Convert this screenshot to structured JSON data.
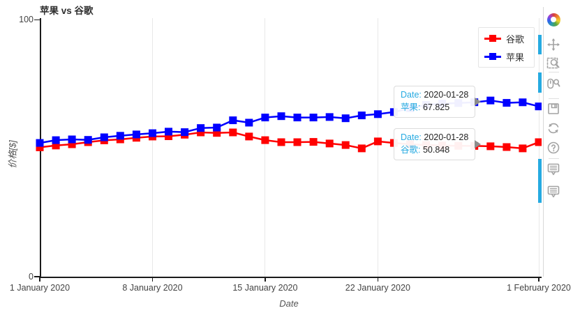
{
  "header": {
    "title": "苹果 vs 谷歌"
  },
  "axes": {
    "x": {
      "label": "Date",
      "ticks": [
        "1 January 2020",
        "8 January 2020",
        "15 January 2020",
        "22 January 2020",
        "1 February 2020"
      ],
      "tick_days": [
        0,
        7,
        14,
        21,
        31
      ]
    },
    "y": {
      "label": "价格[$]",
      "ticks": [
        "0",
        "100"
      ],
      "range": [
        0,
        100
      ]
    }
  },
  "legend": {
    "items": [
      {
        "label": "谷歌",
        "color": "#ff0000"
      },
      {
        "label": "苹果",
        "color": "#0000ff"
      }
    ]
  },
  "tooltips": [
    {
      "rows": [
        {
          "label": "Date:",
          "value": "2020-01-28"
        },
        {
          "label": "苹果:",
          "value": "67.825"
        }
      ]
    },
    {
      "rows": [
        {
          "label": "Date:",
          "value": "2020-01-28"
        },
        {
          "label": "谷歌:",
          "value": "50.848"
        }
      ]
    }
  ],
  "toolbar": {
    "accent_color": "#26aae1",
    "tools": [
      "bokeh-logo",
      "pan",
      "box-zoom",
      "wheel-zoom",
      "save",
      "reset",
      "help",
      "hover",
      "hover"
    ],
    "active_tools": [
      "pan",
      "wheel-zoom",
      "hover",
      "hover"
    ]
  },
  "chart_data": {
    "type": "line",
    "title": "苹果 vs 谷歌",
    "xlabel": "Date",
    "ylabel": "价格[$]",
    "ylim": [
      0,
      100
    ],
    "grid": "vertical-major-only",
    "legend_position": "top-right-inside",
    "marker": "square",
    "x": [
      "2020-01-01",
      "2020-01-02",
      "2020-01-03",
      "2020-01-04",
      "2020-01-05",
      "2020-01-06",
      "2020-01-07",
      "2020-01-08",
      "2020-01-09",
      "2020-01-10",
      "2020-01-11",
      "2020-01-12",
      "2020-01-13",
      "2020-01-14",
      "2020-01-15",
      "2020-01-16",
      "2020-01-17",
      "2020-01-18",
      "2020-01-19",
      "2020-01-20",
      "2020-01-21",
      "2020-01-22",
      "2020-01-23",
      "2020-01-24",
      "2020-01-25",
      "2020-01-26",
      "2020-01-27",
      "2020-01-28",
      "2020-01-29",
      "2020-01-30",
      "2020-01-31",
      "2020-02-01"
    ],
    "series": [
      {
        "name": "谷歌",
        "color": "#ff0000",
        "values": [
          50.3,
          51.0,
          51.5,
          52.3,
          53.0,
          53.4,
          54.0,
          54.5,
          54.6,
          55.2,
          56.1,
          55.9,
          56.1,
          54.5,
          53.1,
          52.3,
          52.3,
          52.4,
          51.8,
          51.2,
          49.9,
          52.6,
          52.0,
          51.5,
          51.2,
          51.0,
          50.9,
          50.848,
          50.7,
          50.4,
          49.9,
          52.3
        ]
      },
      {
        "name": "苹果",
        "color": "#0000ff",
        "values": [
          52.0,
          53.1,
          53.4,
          53.2,
          54.2,
          54.8,
          55.3,
          55.8,
          56.4,
          56.2,
          57.8,
          58.0,
          60.8,
          59.9,
          61.9,
          62.4,
          61.9,
          61.9,
          62.1,
          61.6,
          62.7,
          63.2,
          64.0,
          65.5,
          66.8,
          67.3,
          67.5,
          67.825,
          68.5,
          67.6,
          67.8,
          66.2
        ]
      }
    ]
  }
}
